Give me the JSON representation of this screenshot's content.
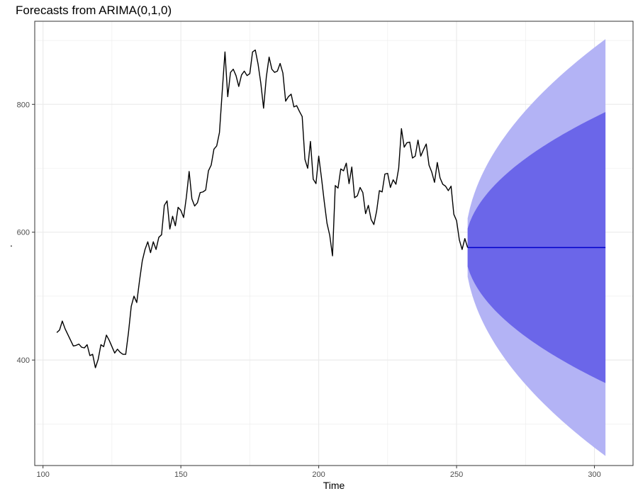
{
  "chart_data": {
    "type": "line",
    "title": "Forecasts from ARIMA(0,1,0)",
    "xlabel": "Time",
    "ylabel": ".",
    "xlim": [
      97,
      314
    ],
    "ylim": [
      235,
      930
    ],
    "x_ticks": [
      100,
      150,
      200,
      250,
      300
    ],
    "x_tick_labels": [
      "100",
      "150",
      "200",
      "250",
      "300"
    ],
    "y_ticks": [
      400,
      600,
      800
    ],
    "y_tick_labels": [
      "400",
      "600",
      "800"
    ],
    "grid": true,
    "legend": "none",
    "series": [
      {
        "type": "line",
        "x_start": 105,
        "x_step": 1,
        "values": [
          443,
          447,
          461,
          449,
          440,
          431,
          422,
          423,
          425,
          420,
          419,
          424,
          407,
          409,
          388,
          401,
          424,
          421,
          439,
          431,
          421,
          411,
          417,
          412,
          409,
          409,
          443,
          484,
          500,
          490,
          524,
          555,
          573,
          585,
          568,
          585,
          573,
          592,
          596,
          642,
          649,
          605,
          625,
          610,
          639,
          634,
          623,
          655,
          695,
          652,
          641,
          646,
          662,
          663,
          666,
          696,
          705,
          730,
          735,
          756,
          820,
          882,
          812,
          850,
          855,
          845,
          828,
          846,
          852,
          845,
          848,
          882,
          885,
          863,
          833,
          794,
          843,
          874,
          855,
          850,
          852,
          864,
          849,
          805,
          812,
          816,
          796,
          798,
          789,
          781,
          714,
          700,
          742,
          683,
          676,
          719,
          685,
          648,
          614,
          595,
          563,
          673,
          669,
          699,
          696,
          708,
          676,
          702,
          654,
          657,
          670,
          662,
          629,
          642,
          620,
          612,
          633,
          665,
          663,
          691,
          692,
          670,
          682,
          675,
          700,
          762,
          733,
          740,
          741,
          716,
          719,
          744,
          719,
          729,
          738,
          705,
          694,
          678,
          709,
          685,
          675,
          672,
          665,
          672,
          628,
          618,
          588,
          573,
          590,
          576
        ]
      },
      {
        "type": "forecast_mean",
        "x_range": [
          254,
          304
        ],
        "value": 576
      }
    ],
    "bands": [
      {
        "level": "95%",
        "x_range": [
          254,
          304
        ],
        "center": 576,
        "half_width_end": 326,
        "color": "#b3b3f5"
      },
      {
        "level": "80%",
        "x_range": [
          254,
          304
        ],
        "center": 576,
        "half_width_end": 212,
        "color": "#6b66e9"
      }
    ],
    "colors": {
      "line": "#000000",
      "forecast": "#0000cc",
      "grid": "#ebebeb",
      "panel_border": "#333333"
    }
  }
}
